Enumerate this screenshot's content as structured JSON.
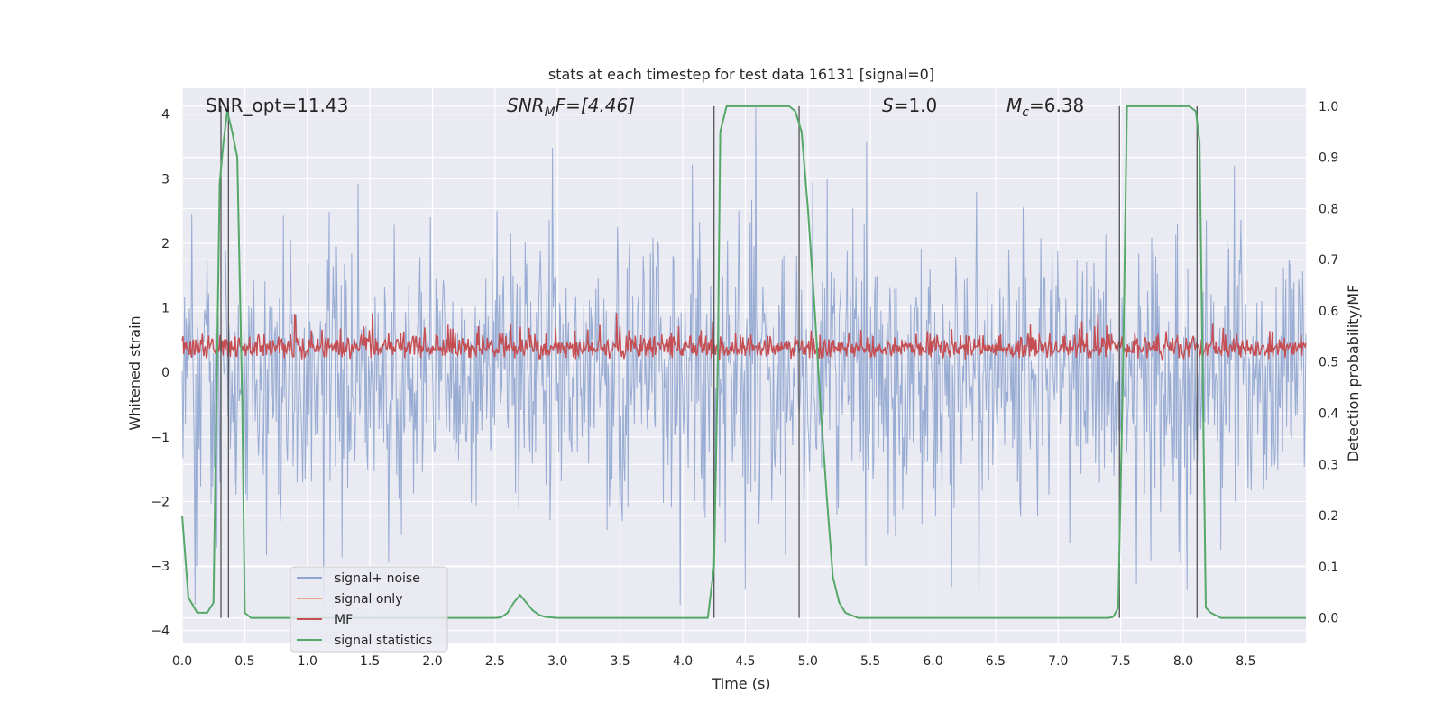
{
  "chart_data": {
    "type": "line",
    "title": "stats at each timestep for test data 16131 [signal=0]",
    "xlabel": "Time (s)",
    "ylabel": "Whitened strain",
    "ylabel_right": "Detection probability/MF",
    "xlim": [
      0.0,
      8.98
    ],
    "ylim": [
      -4.2,
      4.4
    ],
    "ylim_right": [
      -0.05,
      1.035
    ],
    "x_ticks": [
      "0.0",
      "0.5",
      "1.0",
      "1.5",
      "2.0",
      "2.5",
      "3.0",
      "3.5",
      "4.0",
      "4.5",
      "5.0",
      "5.5",
      "6.0",
      "6.5",
      "7.0",
      "7.5",
      "8.0",
      "8.5"
    ],
    "y_ticks": [
      "4",
      "3",
      "2",
      "1",
      "0",
      "−1",
      "−2",
      "−3",
      "−4"
    ],
    "y_ticks_right": [
      "1.0",
      "0.9",
      "0.8",
      "0.7",
      "0.6",
      "0.5",
      "0.4",
      "0.3",
      "0.2",
      "0.1",
      "0.0"
    ],
    "grid": true,
    "legend_position": "lower-left",
    "annotations": {
      "snr_opt": "SNR_opt=11.43",
      "snr_mf": "SNR",
      "snr_mf_sub": "M",
      "snr_mf_rest": "F=[4.46]",
      "s_label": "S",
      "s_rest": "=1.0",
      "mc_label": "M",
      "mc_sub": "c",
      "mc_rest": "=6.38"
    },
    "series": [
      {
        "name": "signal+ noise",
        "color": "#8fa5cf",
        "note_envelope": "whitened noise, roughly within -3.5 .. 4.0"
      },
      {
        "name": "signal only",
        "color": "#e8a385"
      },
      {
        "name": "MF",
        "color": "#c44e52",
        "note_envelope": "matched filter output, roughly within 0.0 .. 0.8"
      },
      {
        "name": "signal statistics",
        "color": "#55a868",
        "x": [
          0.0,
          0.05,
          0.12,
          0.2,
          0.25,
          0.3,
          0.33,
          0.36,
          0.4,
          0.44,
          0.48,
          0.5,
          0.55,
          0.6,
          0.8,
          1.0,
          1.5,
          2.0,
          2.5,
          2.55,
          2.6,
          2.65,
          2.7,
          2.75,
          2.8,
          2.85,
          2.9,
          3.0,
          3.5,
          4.0,
          4.2,
          4.25,
          4.28,
          4.3,
          4.35,
          4.5,
          4.8,
          4.85,
          4.9,
          4.95,
          5.0,
          5.05,
          5.1,
          5.15,
          5.2,
          5.25,
          5.3,
          5.4,
          6.0,
          6.5,
          7.0,
          7.4,
          7.44,
          7.48,
          7.52,
          7.55,
          7.6,
          8.0,
          8.05,
          8.1,
          8.13,
          8.18,
          8.22,
          8.3,
          8.98
        ],
        "y": [
          0.2,
          0.04,
          0.01,
          0.01,
          0.03,
          0.85,
          0.93,
          0.99,
          0.95,
          0.9,
          0.42,
          0.01,
          0.0,
          0.0,
          0.0,
          0.0,
          0.0,
          0.0,
          0.0,
          0.001,
          0.01,
          0.03,
          0.045,
          0.03,
          0.015,
          0.006,
          0.002,
          0.0,
          0.0,
          0.0,
          0.0,
          0.1,
          0.5,
          0.95,
          1.0,
          1.0,
          1.0,
          1.0,
          0.99,
          0.95,
          0.8,
          0.62,
          0.42,
          0.24,
          0.08,
          0.03,
          0.01,
          0.0,
          0.0,
          0.0,
          0.0,
          0.0,
          0.002,
          0.02,
          0.5,
          1.0,
          1.0,
          1.0,
          1.0,
          0.99,
          0.93,
          0.02,
          0.01,
          0.0,
          0.0
        ]
      }
    ],
    "vertical_markers_x": [
      0.31,
      0.37,
      4.25,
      4.93,
      7.49,
      8.11
    ]
  }
}
